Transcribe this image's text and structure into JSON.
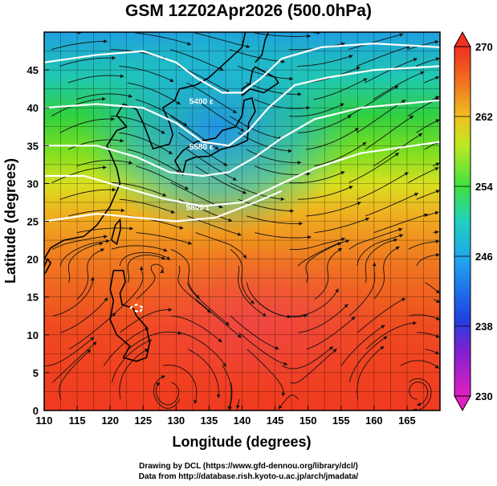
{
  "title": "GSM 12Z02Apr2026 (500.0hPa)",
  "map": {
    "xlabel": "Longitude (degrees)",
    "ylabel": "Latitude  (degrees)",
    "xlim": [
      110,
      170
    ],
    "ylim": [
      0,
      50
    ],
    "x_ticks": [
      "110",
      "115",
      "120",
      "125",
      "130",
      "135",
      "140",
      "145",
      "150",
      "155",
      "160",
      "165"
    ],
    "y_ticks": [
      "0",
      "5",
      "10",
      "15",
      "20",
      "25",
      "30",
      "35",
      "40",
      "45"
    ],
    "grid": true,
    "field": "temperature at 500 hPa",
    "contours": [
      {
        "label": "5400 ε",
        "lon": 132,
        "lat": 40.5
      },
      {
        "label": "5580 ε",
        "lon": 132,
        "lat": 34.5
      },
      {
        "label": "5800 ε",
        "lon": 131.5,
        "lat": 26.5
      }
    ]
  },
  "colorbar": {
    "min": 230,
    "max": 270,
    "tick_labels": [
      "230",
      "238",
      "246",
      "254",
      "262",
      "270"
    ],
    "colors": [
      "#e020c0",
      "#2040e0",
      "#20a0f0",
      "#20d0c0",
      "#40e040",
      "#f0f020",
      "#f0a020",
      "#f05020",
      "#f03020"
    ]
  },
  "credits": {
    "line1": "Drawing by DCL (https://www.gfd-dennou.org/library/dcl/)",
    "line2": "Data from http://database.rish.kyoto-u.ac.jp/arch/jmadata/"
  }
}
